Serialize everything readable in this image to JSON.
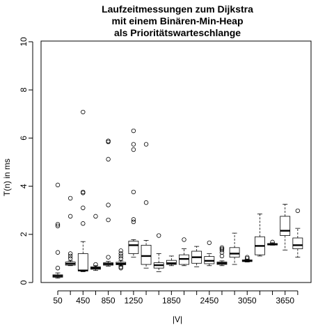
{
  "chart_data": {
    "type": "boxplot",
    "title": [
      "Laufzeitmessungen zum Dijkstra",
      "mit einem Binären-Min-Heap",
      "als Prioritätswarteschlange"
    ],
    "xlabel": "|V|",
    "ylabel": "T(n) in ms",
    "ylim": [
      0,
      10
    ],
    "yticks": [
      0,
      2,
      4,
      6,
      8,
      10
    ],
    "x_tick_labels": [
      {
        "label": "50",
        "index": 0
      },
      {
        "label": "450",
        "index": 2
      },
      {
        "label": "850",
        "index": 4
      },
      {
        "label": "1250",
        "index": 6
      },
      {
        "label": "1850",
        "index": 9
      },
      {
        "label": "2450",
        "index": 12
      },
      {
        "label": "3050",
        "index": 15
      },
      {
        "label": "3650",
        "index": 18
      }
    ],
    "boxes": [
      {
        "min": 0.18,
        "q1": 0.22,
        "median": 0.27,
        "q3": 0.32,
        "max": 0.4,
        "outliers": [
          0.6,
          1.25,
          2.35,
          2.42,
          4.05
        ]
      },
      {
        "min": 0.7,
        "q1": 0.72,
        "median": 0.78,
        "q3": 0.85,
        "max": 0.9,
        "outliers": [
          1.0,
          1.1,
          1.2,
          2.75,
          3.5
        ]
      },
      {
        "min": 0.45,
        "q1": 0.48,
        "median": 0.5,
        "q3": 1.2,
        "max": 1.7,
        "outliers": [
          2.45,
          3.1,
          3.72,
          3.76,
          7.08
        ]
      },
      {
        "min": 0.5,
        "q1": 0.55,
        "median": 0.6,
        "q3": 0.65,
        "max": 0.7,
        "outliers": [
          0.75,
          2.75
        ]
      },
      {
        "min": 0.68,
        "q1": 0.72,
        "median": 0.77,
        "q3": 0.82,
        "max": 0.88,
        "outliers": [
          1.05,
          2.6,
          3.22,
          5.12,
          5.84,
          5.88
        ]
      },
      {
        "min": 0.7,
        "q1": 0.74,
        "median": 0.78,
        "q3": 0.84,
        "max": 0.9,
        "outliers": [
          0.6,
          0.65,
          1.0,
          1.1,
          1.2,
          1.32
        ]
      },
      {
        "min": 1.05,
        "q1": 1.2,
        "median": 1.55,
        "q3": 1.72,
        "max": 1.78,
        "outliers": [
          2.52,
          2.62,
          3.76,
          5.52,
          5.74,
          6.3
        ]
      },
      {
        "min": 0.6,
        "q1": 0.75,
        "median": 1.1,
        "q3": 1.55,
        "max": 1.75,
        "outliers": [
          3.32,
          5.74
        ]
      },
      {
        "min": 0.45,
        "q1": 0.6,
        "median": 0.72,
        "q3": 0.82,
        "max": 1.2,
        "outliers": [
          1.95
        ]
      },
      {
        "min": 0.7,
        "q1": 0.75,
        "median": 0.8,
        "q3": 0.92,
        "max": 1.1,
        "outliers": []
      },
      {
        "min": 0.7,
        "q1": 0.75,
        "median": 0.98,
        "q3": 1.15,
        "max": 1.4,
        "outliers": [
          1.78
        ]
      },
      {
        "min": 0.65,
        "q1": 0.8,
        "median": 1.05,
        "q3": 1.3,
        "max": 1.5,
        "outliers": []
      },
      {
        "min": 0.7,
        "q1": 0.78,
        "median": 0.9,
        "q3": 1.08,
        "max": 1.2,
        "outliers": [
          1.65
        ]
      },
      {
        "min": 0.7,
        "q1": 0.75,
        "median": 0.8,
        "q3": 0.85,
        "max": 0.9,
        "outliers": [
          1.1,
          1.25,
          1.35,
          1.4,
          1.45
        ]
      },
      {
        "min": 0.75,
        "q1": 1.05,
        "median": 1.2,
        "q3": 1.45,
        "max": 2.05,
        "outliers": []
      },
      {
        "min": 0.85,
        "q1": 0.87,
        "median": 0.9,
        "q3": 0.94,
        "max": 0.97,
        "outliers": [
          1.0,
          1.05
        ]
      },
      {
        "min": 1.1,
        "q1": 1.15,
        "median": 1.52,
        "q3": 1.9,
        "max": 2.85,
        "outliers": []
      },
      {
        "min": 1.55,
        "q1": 1.56,
        "median": 1.58,
        "q3": 1.62,
        "max": 1.65,
        "outliers": [
          1.68
        ]
      },
      {
        "min": 1.35,
        "q1": 1.95,
        "median": 2.15,
        "q3": 2.75,
        "max": 3.25,
        "outliers": []
      },
      {
        "min": 1.05,
        "q1": 1.4,
        "median": 1.55,
        "q3": 1.85,
        "max": 2.25,
        "outliers": [
          2.98
        ]
      }
    ]
  }
}
